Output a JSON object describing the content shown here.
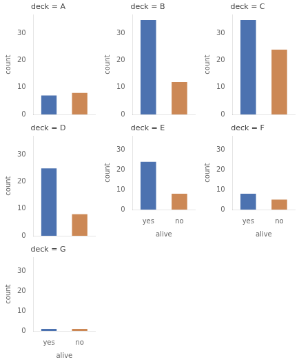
{
  "chart_data": [
    {
      "type": "bar",
      "title": "deck = A",
      "categories": [
        "yes",
        "no"
      ],
      "values": [
        7,
        8
      ],
      "colors": [
        "#4C72B0",
        "#CC8855"
      ],
      "ylabel": "count",
      "ylim": [
        0,
        37
      ],
      "yticks": [
        0,
        10,
        20,
        30
      ],
      "grid": false,
      "tick_labels": "y"
    },
    {
      "type": "bar",
      "title": "deck = B",
      "categories": [
        "yes",
        "no"
      ],
      "values": [
        35,
        12
      ],
      "colors": [
        "#4C72B0",
        "#CC8855"
      ],
      "ylabel": "count",
      "ylim": [
        0,
        37
      ],
      "yticks": [
        0,
        10,
        20,
        30
      ],
      "grid": false,
      "tick_labels": "y"
    },
    {
      "type": "bar",
      "title": "deck = C",
      "categories": [
        "yes",
        "no"
      ],
      "values": [
        35,
        24
      ],
      "colors": [
        "#4C72B0",
        "#CC8855"
      ],
      "ylabel": "count",
      "ylim": [
        0,
        37
      ],
      "yticks": [
        0,
        10,
        20,
        30
      ],
      "grid": false,
      "tick_labels": "y"
    },
    {
      "type": "bar",
      "title": "deck = D",
      "categories": [
        "yes",
        "no"
      ],
      "values": [
        25,
        8
      ],
      "colors": [
        "#4C72B0",
        "#CC8855"
      ],
      "ylabel": "count",
      "ylim": [
        0,
        37
      ],
      "yticks": [
        0,
        10,
        20,
        30
      ],
      "grid": false,
      "tick_labels": "y"
    },
    {
      "type": "bar",
      "title": "deck = E",
      "categories": [
        "yes",
        "no"
      ],
      "values": [
        24,
        8
      ],
      "colors": [
        "#4C72B0",
        "#CC8855"
      ],
      "xlabel": "alive",
      "ylabel": "count",
      "ylim": [
        0,
        37
      ],
      "yticks": [
        0,
        10,
        20,
        30
      ],
      "grid": false
    },
    {
      "type": "bar",
      "title": "deck = F",
      "categories": [
        "yes",
        "no"
      ],
      "values": [
        8,
        5
      ],
      "colors": [
        "#4C72B0",
        "#CC8855"
      ],
      "xlabel": "alive",
      "ylabel": "count",
      "ylim": [
        0,
        37
      ],
      "yticks": [
        0,
        10,
        20,
        30
      ],
      "grid": false
    },
    {
      "type": "bar",
      "title": "deck = G",
      "categories": [
        "yes",
        "no"
      ],
      "values": [
        1,
        1
      ],
      "colors": [
        "#4C72B0",
        "#CC8855"
      ],
      "xlabel": "alive",
      "ylabel": "count",
      "ylim": [
        0,
        37
      ],
      "yticks": [
        0,
        10,
        20,
        30
      ],
      "grid": false
    }
  ]
}
